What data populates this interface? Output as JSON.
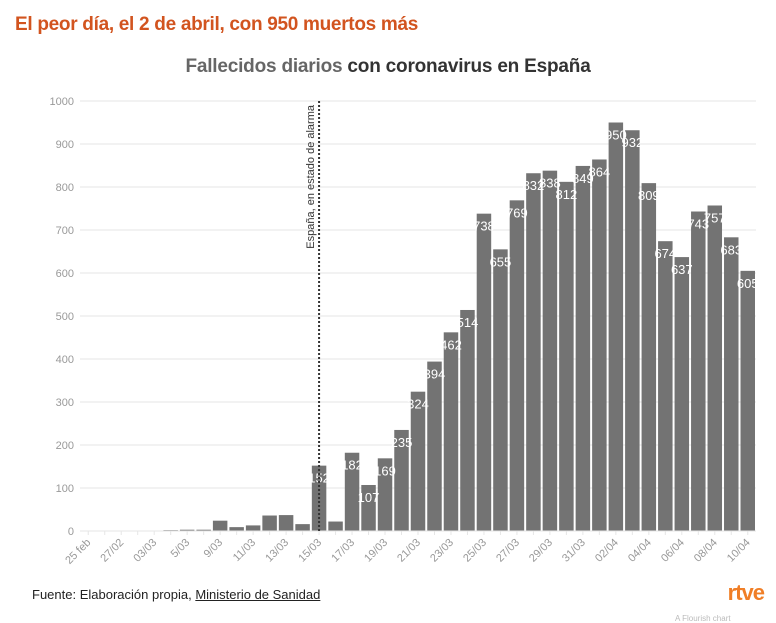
{
  "headline": "El peor día, el 2 de abril, con 950 muertos más",
  "source": {
    "prefix": "Fuente: Elaboración propia, ",
    "link": "Ministerio de Sanidad"
  },
  "logo": "rtve",
  "credit": "A Flourish chart",
  "colors": {
    "headline": "#d2541f",
    "bar": "#737373",
    "label": "#ffffff",
    "grid": "#e6e6e6",
    "axis_text": "#999999",
    "logo": "#f07e26"
  },
  "chart_data": {
    "type": "bar",
    "title": "Fallecidos diarios con coronavirus en España",
    "title_parts": [
      "Fallecidos diarios",
      " con coronavirus en España"
    ],
    "xlabel": "",
    "ylabel": "",
    "ylim": [
      0,
      1000
    ],
    "yticks": [
      0,
      100,
      200,
      300,
      400,
      500,
      600,
      700,
      800,
      900,
      1000
    ],
    "grid": true,
    "categories": [
      "25 feb",
      "26/02",
      "27/02",
      "28/02",
      "03/03",
      "04/03",
      "5/03",
      "8/03",
      "9/03",
      "10/03",
      "11/03",
      "12/03",
      "13/03",
      "14/03",
      "15/03",
      "16/03",
      "17/03",
      "18/03",
      "19/03",
      "20/03",
      "21/03",
      "22/03",
      "23/03",
      "24/03",
      "25/03",
      "26/03",
      "27/03",
      "28/03",
      "29/03",
      "30/03",
      "31/03",
      "01/04",
      "02/04",
      "03/04",
      "04/04",
      "05/04",
      "06/04",
      "07/04",
      "08/04",
      "09/04",
      "10/04"
    ],
    "tick_labels": [
      "25 feb",
      "27/02",
      "03/03",
      "5/03",
      "9/03",
      "11/03",
      "13/03",
      "15/03",
      "17/03",
      "19/03",
      "21/03",
      "23/03",
      "25/03",
      "27/03",
      "29/03",
      "31/03",
      "02/04",
      "04/04",
      "06/04",
      "08/04",
      "10/04"
    ],
    "values": [
      0,
      0,
      0,
      0,
      0,
      2,
      3,
      3,
      24,
      9,
      13,
      36,
      37,
      16,
      152,
      22,
      182,
      107,
      169,
      235,
      324,
      394,
      462,
      514,
      738,
      655,
      769,
      832,
      838,
      812,
      849,
      864,
      950,
      932,
      809,
      674,
      637,
      743,
      757,
      683,
      605
    ],
    "labeled_min": 100,
    "annotation": {
      "text": "España, en estado de alarma",
      "at_category": "15/03",
      "style": "dotted-vertical-line"
    }
  }
}
